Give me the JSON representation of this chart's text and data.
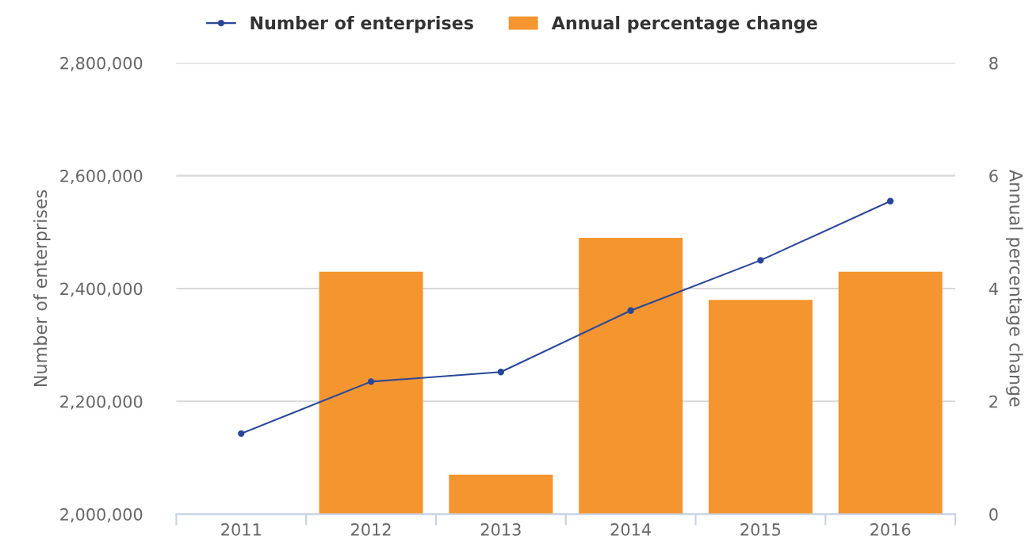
{
  "chart_data": {
    "type": "bar",
    "categories": [
      "2011",
      "2012",
      "2013",
      "2014",
      "2015",
      "2016"
    ],
    "series": [
      {
        "name": "Number of enterprises",
        "type": "line",
        "color": "#29479a",
        "values": [
          2143000,
          2235000,
          2252000,
          2361000,
          2450000,
          2555000
        ]
      },
      {
        "name": "Annual percentage change",
        "axis": "y2",
        "color": "#f4952f",
        "values": [
          null,
          4.3,
          0.7,
          4.9,
          3.8,
          4.3
        ]
      }
    ],
    "ylabel": "Number of enterprises",
    "y2label": "Annual percentage change",
    "ylim": [
      2000000,
      2800000
    ],
    "yticks": [
      {
        "value": 2000000,
        "label": "2,000,000"
      },
      {
        "value": 2200000,
        "label": "2,200,000"
      },
      {
        "value": 2400000,
        "label": "2,400,000"
      },
      {
        "value": 2600000,
        "label": "2,600,000"
      },
      {
        "value": 2800000,
        "label": "2,800,000"
      }
    ],
    "y2lim": [
      0,
      8
    ],
    "y2ticks": [
      0,
      2,
      4,
      6,
      8
    ],
    "grid": "y",
    "legend": "top",
    "marker": "circle",
    "line_style": "solid"
  }
}
